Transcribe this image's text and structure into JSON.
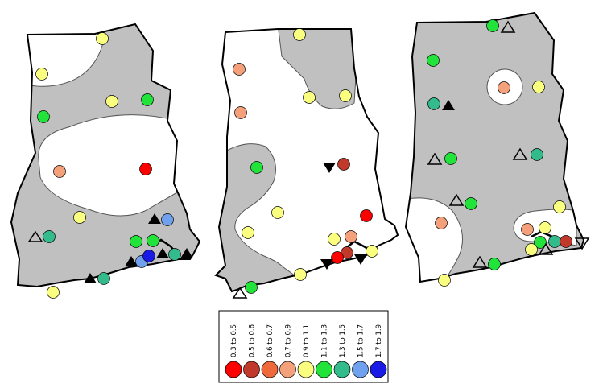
{
  "colors": {
    "region_fill": "#c0c0c0",
    "outline": "#000000",
    "contour": "#555555",
    "class_0_3_to_0_5": "#ff0000",
    "class_0_5_to_0_6": "#c0392b",
    "class_0_6_to_0_7": "#ee6a3c",
    "class_0_7_to_0_9": "#f4a07a",
    "class_0_9_to_1_1": "#fbff7f",
    "class_1_1_to_1_3": "#22e33a",
    "class_1_3_to_1_5": "#33bb8c",
    "class_1_5_to_1_7": "#6fa1ef",
    "class_1_7_to_1_9": "#1a1ae6"
  },
  "legend": {
    "items": [
      {
        "label": "0.3 to 0.5",
        "color": "#ff0000"
      },
      {
        "label": "0.5 to 0.6",
        "color": "#c0392b"
      },
      {
        "label": "0.6 to 0.7",
        "color": "#ee6a3c"
      },
      {
        "label": "0.7 to 0.9",
        "color": "#f4a07a"
      },
      {
        "label": "0.9 to 1.1",
        "color": "#fbff7f"
      },
      {
        "label": "1.1 to 1.3",
        "color": "#22e33a"
      },
      {
        "label": "1.3 to 1.5",
        "color": "#33bb8c"
      },
      {
        "label": "1.5 to 1.7",
        "color": "#6fa1ef"
      },
      {
        "label": "1.7 to 1.9",
        "color": "#1a1ae6"
      }
    ]
  },
  "marker_types": [
    "filled-triangle-up",
    "hollow-triangle-up",
    "filled-triangle-down",
    "hollow-triangle-down"
  ]
}
